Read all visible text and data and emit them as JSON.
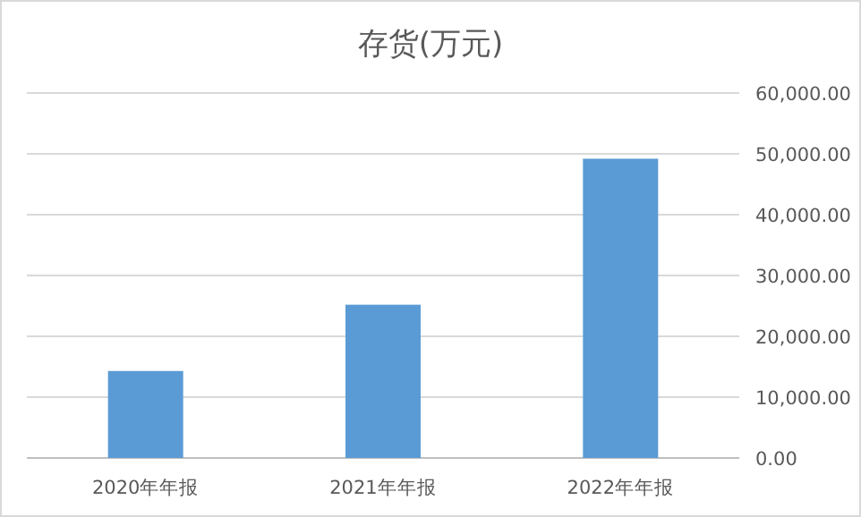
{
  "chart_data": {
    "type": "bar",
    "title": "存货(万元)",
    "categories": [
      "2020年年报",
      "2021年年报",
      "2022年年报"
    ],
    "values": [
      14300,
      25200,
      49200
    ],
    "color": "#5b9bd5",
    "ylim": [
      0,
      60000
    ],
    "yticks": [
      {
        "value": 0,
        "label": "0.00"
      },
      {
        "value": 10000,
        "label": "10,000.00"
      },
      {
        "value": 20000,
        "label": "20,000.00"
      },
      {
        "value": 30000,
        "label": "30,000.00"
      },
      {
        "value": 40000,
        "label": "40,000.00"
      },
      {
        "value": 50000,
        "label": "50,000.00"
      },
      {
        "value": 60000,
        "label": "60,000.00"
      }
    ],
    "grid": "y"
  }
}
